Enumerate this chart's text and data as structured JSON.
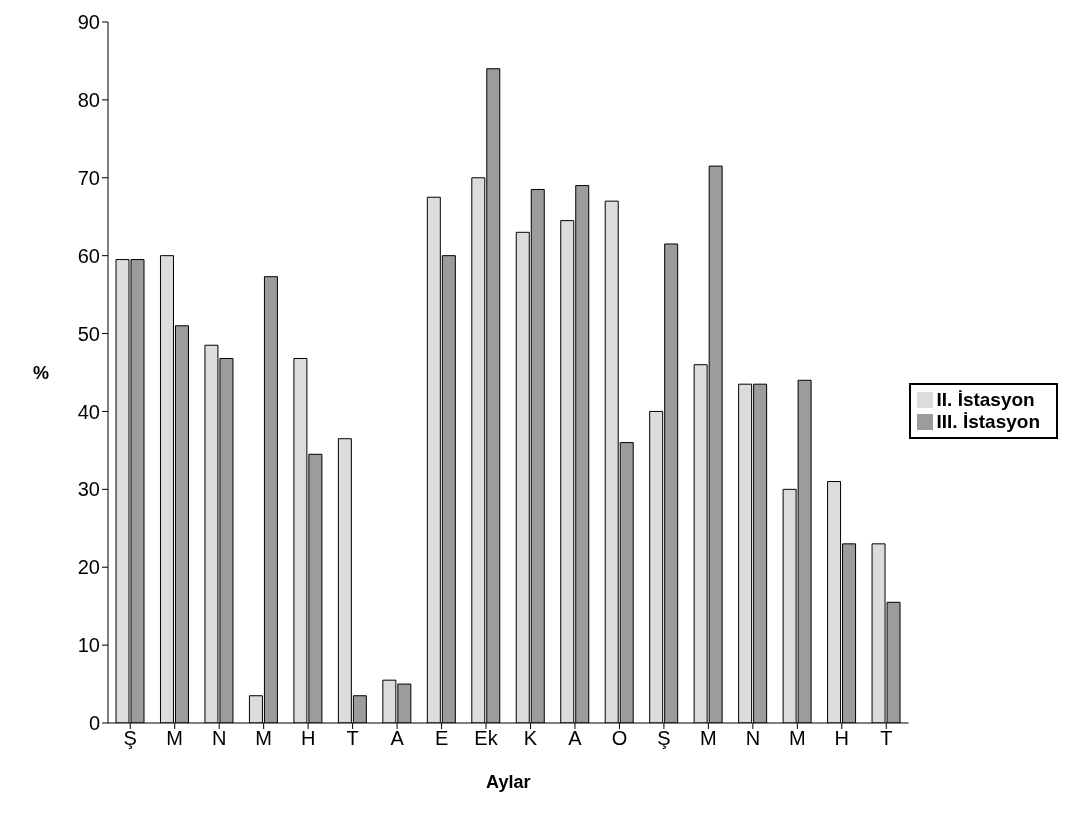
{
  "chart_data": {
    "type": "bar",
    "xlabel": "Aylar",
    "ylabel": "%",
    "categories": [
      "Ş",
      "M",
      "N",
      "M",
      "H",
      "T",
      "A",
      "E",
      "Ek",
      "K",
      "A",
      "O",
      "Ş",
      "M",
      "N",
      "M",
      "H",
      "T"
    ],
    "series": [
      {
        "name": "II. İstasyon",
        "color": "#dcdcdc",
        "values": [
          59.5,
          60,
          48.5,
          3.5,
          46.8,
          36.5,
          5.5,
          67.5,
          70,
          63,
          64.5,
          67,
          40,
          46,
          43.5,
          30,
          31,
          23
        ]
      },
      {
        "name": "III. İstasyon",
        "color": "#9c9c9c",
        "values": [
          59.5,
          51,
          46.8,
          57.3,
          34.5,
          3.5,
          5,
          60,
          84,
          68.5,
          69,
          36,
          61.5,
          71.5,
          43.5,
          44,
          23,
          15.5
        ]
      }
    ],
    "ylim": [
      0,
      90
    ],
    "yticks": [
      0,
      10,
      20,
      30,
      40,
      50,
      60,
      70,
      80,
      90
    ],
    "grid": false,
    "legend": "right"
  }
}
